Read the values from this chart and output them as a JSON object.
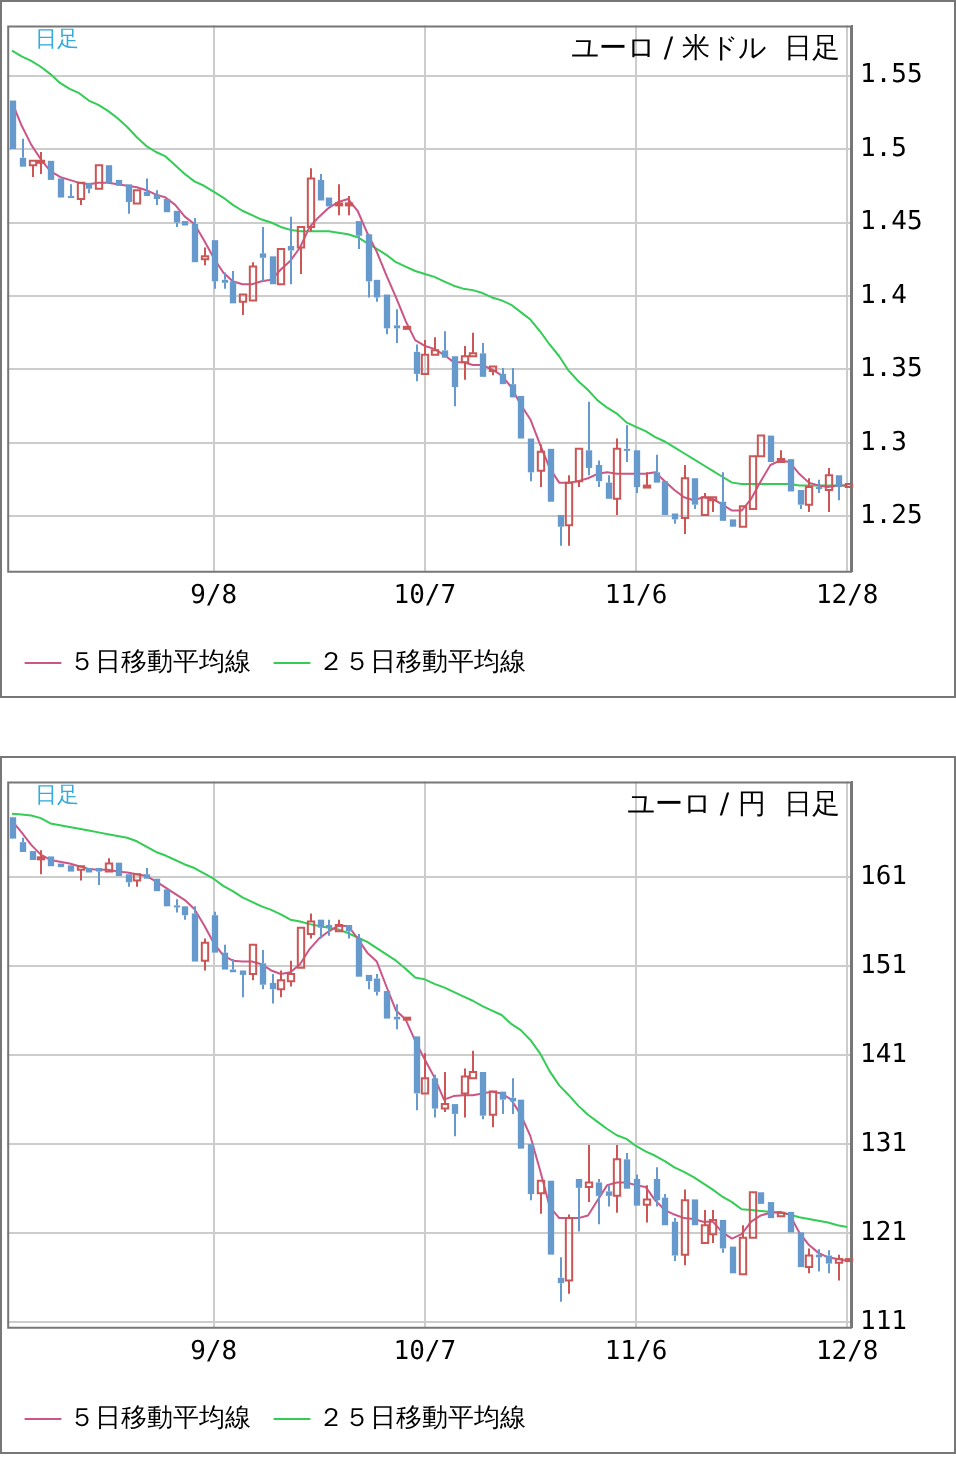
{
  "chart_data": [
    {
      "type": "candlestick",
      "title": "ユーロ / 米ドル  日足",
      "annotations": [
        "日足"
      ],
      "categories": [
        null,
        null,
        null,
        null,
        null,
        null,
        null,
        null,
        null,
        null,
        null,
        null,
        null,
        null,
        null,
        null,
        null,
        null,
        null,
        null,
        null,
        "9/8",
        null,
        null,
        null,
        null,
        null,
        null,
        null,
        null,
        null,
        null,
        null,
        null,
        null,
        null,
        null,
        null,
        null,
        null,
        null,
        null,
        null,
        "10/7",
        null,
        null,
        null,
        null,
        null,
        null,
        null,
        null,
        null,
        null,
        null,
        null,
        null,
        null,
        null,
        null,
        null,
        null,
        null,
        null,
        null,
        "11/6",
        null,
        null,
        null,
        null,
        null,
        null,
        null,
        null,
        null,
        null,
        null,
        null,
        null,
        null,
        null,
        null,
        null,
        null,
        null,
        null,
        null,
        "12/8"
      ],
      "ohlc": [
        [
          1.533,
          1.535,
          1.498,
          1.5
        ],
        [
          1.494,
          1.507,
          1.487,
          1.488
        ],
        [
          1.489,
          1.494,
          1.481,
          1.492
        ],
        [
          1.491,
          1.498,
          1.483,
          1.492
        ],
        [
          1.492,
          1.494,
          1.478,
          1.479
        ],
        [
          1.48,
          1.48,
          1.465,
          1.467
        ],
        [
          1.468,
          1.476,
          1.466,
          1.467
        ],
        [
          1.466,
          1.479,
          1.462,
          1.477
        ],
        [
          1.477,
          1.479,
          1.47,
          1.473
        ],
        [
          1.473,
          1.49,
          1.472,
          1.489
        ],
        [
          1.489,
          1.49,
          1.475,
          1.477
        ],
        [
          1.479,
          1.48,
          1.474,
          1.475
        ],
        [
          1.476,
          1.476,
          1.456,
          1.464
        ],
        [
          1.463,
          1.473,
          1.462,
          1.472
        ],
        [
          1.471,
          1.48,
          1.466,
          1.468
        ],
        [
          1.469,
          1.472,
          1.462,
          1.466
        ],
        [
          1.466,
          1.468,
          1.456,
          1.457
        ],
        [
          1.458,
          1.46,
          1.447,
          1.45
        ],
        [
          1.451,
          1.452,
          1.446,
          1.448
        ],
        [
          1.449,
          1.453,
          1.422,
          1.423
        ],
        [
          1.425,
          1.433,
          1.421,
          1.427
        ],
        [
          1.438,
          1.439,
          1.405,
          1.41
        ],
        [
          1.411,
          1.416,
          1.405,
          1.409
        ],
        [
          1.41,
          1.417,
          1.394,
          1.395
        ],
        [
          1.396,
          1.403,
          1.387,
          1.401
        ],
        [
          1.397,
          1.423,
          1.396,
          1.42
        ],
        [
          1.429,
          1.447,
          1.41,
          1.426
        ],
        [
          1.427,
          1.428,
          1.407,
          1.408
        ],
        [
          1.408,
          1.433,
          1.408,
          1.432
        ],
        [
          1.434,
          1.454,
          1.408,
          1.431
        ],
        [
          1.433,
          1.449,
          1.415,
          1.447
        ],
        [
          1.447,
          1.487,
          1.444,
          1.48
        ],
        [
          1.479,
          1.483,
          1.464,
          1.465
        ],
        [
          1.467,
          1.468,
          1.46,
          1.461
        ],
        [
          1.462,
          1.476,
          1.455,
          1.463
        ],
        [
          1.462,
          1.468,
          1.455,
          1.463
        ],
        [
          1.451,
          1.453,
          1.432,
          1.441
        ],
        [
          1.442,
          1.443,
          1.399,
          1.41
        ],
        [
          1.411,
          1.413,
          1.396,
          1.399
        ],
        [
          1.401,
          1.401,
          1.374,
          1.378
        ],
        [
          1.38,
          1.391,
          1.368,
          1.378
        ],
        [
          1.378,
          1.38,
          1.377,
          1.379
        ],
        [
          1.362,
          1.367,
          1.342,
          1.347
        ],
        [
          1.347,
          1.37,
          1.346,
          1.36
        ],
        [
          1.36,
          1.372,
          1.358,
          1.363
        ],
        [
          1.363,
          1.376,
          1.358,
          1.358
        ],
        [
          1.359,
          1.36,
          1.325,
          1.338
        ],
        [
          1.355,
          1.366,
          1.343,
          1.359
        ],
        [
          1.359,
          1.375,
          1.358,
          1.361
        ],
        [
          1.361,
          1.368,
          1.343,
          1.345
        ],
        [
          1.349,
          1.353,
          1.346,
          1.352
        ],
        [
          1.347,
          1.351,
          1.339,
          1.34
        ],
        [
          1.34,
          1.351,
          1.33,
          1.331
        ],
        [
          1.332,
          1.333,
          1.303,
          1.303
        ],
        [
          1.303,
          1.304,
          1.274,
          1.28
        ],
        [
          1.281,
          1.299,
          1.27,
          1.294
        ],
        [
          1.296,
          1.297,
          1.258,
          1.26
        ],
        [
          1.251,
          1.252,
          1.23,
          1.243
        ],
        [
          1.244,
          1.278,
          1.23,
          1.273
        ],
        [
          1.274,
          1.298,
          1.27,
          1.296
        ],
        [
          1.295,
          1.328,
          1.278,
          1.283
        ],
        [
          1.285,
          1.288,
          1.27,
          1.274
        ],
        [
          1.273,
          1.278,
          1.26,
          1.262
        ],
        [
          1.262,
          1.303,
          1.251,
          1.296
        ],
        [
          1.296,
          1.312,
          1.287,
          1.295
        ],
        [
          1.295,
          1.297,
          1.266,
          1.27
        ],
        [
          1.27,
          1.28,
          1.268,
          1.271
        ],
        [
          1.28,
          1.292,
          1.272,
          1.273
        ],
        [
          1.274,
          1.276,
          1.25,
          1.251
        ],
        [
          1.252,
          1.254,
          1.245,
          1.248
        ],
        [
          1.249,
          1.285,
          1.238,
          1.276
        ],
        [
          1.276,
          1.278,
          1.255,
          1.258
        ],
        [
          1.251,
          1.266,
          1.25,
          1.263
        ],
        [
          1.261,
          1.264,
          1.253,
          1.263
        ],
        [
          1.26,
          1.28,
          1.245,
          1.247
        ],
        [
          1.248,
          1.25,
          1.242,
          1.243
        ],
        [
          1.243,
          1.258,
          1.241,
          1.257
        ],
        [
          1.255,
          1.293,
          1.253,
          1.291
        ],
        [
          1.291,
          1.307,
          1.29,
          1.305
        ],
        [
          1.305,
          1.307,
          1.286,
          1.287
        ],
        [
          1.287,
          1.295,
          1.285,
          1.289
        ],
        [
          1.289,
          1.29,
          1.266,
          1.267
        ],
        [
          1.268,
          1.27,
          1.255,
          1.258
        ],
        [
          1.258,
          1.276,
          1.253,
          1.27
        ],
        [
          1.27,
          1.275,
          1.266,
          1.269
        ],
        [
          1.268,
          1.283,
          1.253,
          1.278
        ],
        [
          1.278,
          1.278,
          1.261,
          1.27
        ],
        [
          1.27,
          1.273,
          1.269,
          1.272
        ]
      ],
      "colors": [
        "#6699cc",
        "#6699cc",
        "#cc5555",
        "#cc5555",
        "#6699cc",
        "#6699cc",
        "#6699cc",
        "#cc5555",
        "#6699cc",
        "#cc5555",
        "#6699cc",
        "#6699cc",
        "#6699cc",
        "#cc5555",
        "#6699cc",
        "#6699cc",
        "#6699cc",
        "#6699cc",
        "#6699cc",
        "#6699cc",
        "#cc5555",
        "#6699cc",
        "#6699cc",
        "#6699cc",
        "#cc5555",
        "#cc5555",
        "#6699cc",
        "#6699cc",
        "#cc5555",
        "#6699cc",
        "#cc5555",
        "#cc5555",
        "#6699cc",
        "#6699cc",
        "#cc5555",
        "#cc5555",
        "#6699cc",
        "#6699cc",
        "#6699cc",
        "#6699cc",
        "#6699cc",
        "#cc5555",
        "#6699cc",
        "#cc5555",
        "#cc5555",
        "#6699cc",
        "#6699cc",
        "#cc5555",
        "#cc5555",
        "#6699cc",
        "#cc5555",
        "#6699cc",
        "#6699cc",
        "#6699cc",
        "#6699cc",
        "#cc5555",
        "#6699cc",
        "#6699cc",
        "#cc5555",
        "#cc5555",
        "#6699cc",
        "#6699cc",
        "#6699cc",
        "#cc5555",
        "#6699cc",
        "#6699cc",
        "#cc5555",
        "#6699cc",
        "#6699cc",
        "#6699cc",
        "#cc5555",
        "#6699cc",
        "#cc5555",
        "#cc5555",
        "#6699cc",
        "#6699cc",
        "#cc5555",
        "#cc5555",
        "#cc5555",
        "#6699cc",
        "#cc5555",
        "#6699cc",
        "#6699cc",
        "#cc5555",
        "#6699cc",
        "#cc5555",
        "#6699cc",
        "#cc5555"
      ],
      "series": [
        {
          "type": "line",
          "name": "５日移動平均線",
          "color": "#cc5588",
          "values": [
            1.532,
            1.516,
            1.503,
            1.493,
            1.485,
            1.481,
            1.479,
            1.477,
            1.476,
            1.477,
            1.477,
            1.476,
            1.475,
            1.474,
            1.472,
            1.469,
            1.467,
            1.462,
            1.454,
            1.449,
            1.438,
            1.426,
            1.416,
            1.41,
            1.408,
            1.408,
            1.41,
            1.411,
            1.418,
            1.424,
            1.433,
            1.447,
            1.454,
            1.46,
            1.464,
            1.466,
            1.458,
            1.443,
            1.43,
            1.414,
            1.399,
            1.383,
            1.37,
            1.366,
            1.364,
            1.36,
            1.355,
            1.355,
            1.353,
            1.353,
            1.35,
            1.346,
            1.338,
            1.326,
            1.316,
            1.299,
            1.283,
            1.273,
            1.273,
            1.274,
            1.276,
            1.279,
            1.28,
            1.279,
            1.279,
            1.279,
            1.279,
            1.28,
            1.274,
            1.268,
            1.263,
            1.261,
            1.263,
            1.262,
            1.258,
            1.254,
            1.254,
            1.262,
            1.274,
            1.285,
            1.288,
            1.287,
            1.279,
            1.273,
            1.271,
            1.27,
            1.271,
            1.271
          ]
        },
        {
          "type": "line",
          "name": "２５日移動平均線",
          "color": "#33cc55",
          "values": [
            1.567,
            1.563,
            1.56,
            1.556,
            1.551,
            1.545,
            1.541,
            1.538,
            1.533,
            1.53,
            1.526,
            1.521,
            1.515,
            1.508,
            1.502,
            1.498,
            1.495,
            1.489,
            1.483,
            1.478,
            1.475,
            1.471,
            1.467,
            1.462,
            1.458,
            1.455,
            1.452,
            1.45,
            1.447,
            1.445,
            1.444,
            1.444,
            1.444,
            1.444,
            1.443,
            1.442,
            1.44,
            1.436,
            1.432,
            1.428,
            1.423,
            1.42,
            1.417,
            1.415,
            1.413,
            1.41,
            1.407,
            1.405,
            1.404,
            1.402,
            1.399,
            1.397,
            1.394,
            1.389,
            1.384,
            1.376,
            1.367,
            1.359,
            1.349,
            1.342,
            1.336,
            1.329,
            1.324,
            1.32,
            1.314,
            1.311,
            1.308,
            1.304,
            1.301,
            1.297,
            1.293,
            1.289,
            1.285,
            1.281,
            1.277,
            1.273,
            1.272,
            1.272,
            1.272,
            1.272,
            1.272,
            1.272,
            1.271,
            1.271,
            1.271,
            1.271,
            1.271,
            1.271
          ]
        }
      ],
      "ylim": [
        1.213,
        1.584
      ],
      "yticks": [
        1.25,
        1.3,
        1.35,
        1.4,
        1.45,
        1.5,
        1.55
      ],
      "grid": true,
      "legend": "bottom",
      "marker": "none"
    },
    {
      "type": "candlestick",
      "title": "ユーロ / 円  日足",
      "annotations": [
        "日足"
      ],
      "categories": [
        null,
        null,
        null,
        null,
        null,
        null,
        null,
        null,
        null,
        null,
        null,
        null,
        null,
        null,
        null,
        null,
        null,
        null,
        null,
        null,
        null,
        "9/8",
        null,
        null,
        null,
        null,
        null,
        null,
        null,
        null,
        null,
        null,
        null,
        null,
        null,
        null,
        null,
        null,
        null,
        null,
        null,
        null,
        null,
        "10/7",
        null,
        null,
        null,
        null,
        null,
        null,
        null,
        null,
        null,
        null,
        null,
        null,
        null,
        null,
        null,
        null,
        null,
        null,
        null,
        null,
        null,
        "11/6",
        null,
        null,
        null,
        null,
        null,
        null,
        null,
        null,
        null,
        null,
        null,
        null,
        null,
        null,
        null,
        null,
        null,
        null,
        null,
        null,
        null,
        "12/8"
      ],
      "ohlc": [
        [
          167.7,
          168.0,
          165.2,
          165.3
        ],
        [
          164.9,
          165.4,
          163.5,
          163.8
        ],
        [
          163.9,
          164.2,
          162.7,
          162.9
        ],
        [
          163.1,
          164.0,
          161.3,
          163.2
        ],
        [
          163.3,
          163.5,
          162.0,
          162.2
        ],
        [
          162.5,
          162.7,
          161.8,
          162.1
        ],
        [
          162.3,
          162.5,
          161.5,
          161.6
        ],
        [
          161.8,
          162.4,
          160.6,
          162.2
        ],
        [
          162.0,
          162.2,
          161.3,
          161.5
        ],
        [
          162.0,
          162.2,
          160.1,
          161.6
        ],
        [
          161.6,
          163.1,
          161.3,
          162.5
        ],
        [
          162.6,
          162.6,
          161.0,
          161.1
        ],
        [
          161.3,
          161.5,
          159.9,
          160.4
        ],
        [
          160.6,
          161.5,
          159.9,
          161.3
        ],
        [
          161.3,
          162.0,
          160.6,
          160.8
        ],
        [
          160.8,
          161.0,
          159.1,
          159.4
        ],
        [
          159.6,
          159.8,
          157.6,
          157.7
        ],
        [
          157.8,
          158.5,
          157.0,
          157.6
        ],
        [
          157.7,
          158.0,
          156.2,
          156.7
        ],
        [
          156.9,
          157.7,
          151.2,
          151.5
        ],
        [
          151.6,
          154.1,
          150.5,
          153.6
        ],
        [
          156.7,
          157.1,
          152.2,
          152.5
        ],
        [
          152.5,
          153.4,
          150.5,
          150.6
        ],
        [
          150.6,
          151.8,
          150.0,
          150.3
        ],
        [
          150.5,
          150.8,
          147.5,
          150.0
        ],
        [
          150.1,
          153.7,
          149.4,
          153.4
        ],
        [
          151.3,
          152.8,
          148.4,
          148.9
        ],
        [
          149.1,
          150.1,
          146.8,
          148.4
        ],
        [
          148.4,
          150.5,
          147.5,
          149.4
        ],
        [
          149.3,
          151.6,
          148.7,
          150.1
        ],
        [
          150.8,
          155.6,
          150.5,
          155.3
        ],
        [
          154.6,
          156.9,
          154.1,
          156.0
        ],
        [
          156.2,
          156.3,
          154.1,
          155.3
        ],
        [
          155.6,
          156.2,
          154.4,
          155.3
        ],
        [
          154.9,
          156.2,
          154.6,
          155.6
        ],
        [
          155.6,
          155.8,
          154.1,
          154.9
        ],
        [
          154.1,
          154.6,
          149.8,
          149.8
        ],
        [
          150.0,
          150.3,
          148.4,
          149.3
        ],
        [
          149.6,
          150.1,
          147.7,
          148.1
        ],
        [
          148.2,
          148.4,
          144.8,
          145.1
        ],
        [
          145.3,
          146.7,
          143.9,
          145.0
        ],
        [
          145.1,
          145.3,
          144.9,
          145.2
        ],
        [
          143.1,
          143.2,
          134.8,
          136.7
        ],
        [
          136.7,
          141.2,
          136.4,
          138.4
        ],
        [
          138.4,
          138.8,
          134.0,
          135.0
        ],
        [
          135.0,
          139.1,
          134.6,
          135.5
        ],
        [
          135.5,
          135.7,
          131.9,
          134.4
        ],
        [
          136.7,
          139.5,
          134.0,
          138.6
        ],
        [
          138.4,
          141.5,
          138.3,
          139.1
        ],
        [
          139.1,
          139.3,
          133.8,
          134.2
        ],
        [
          134.3,
          137.0,
          132.9,
          136.9
        ],
        [
          136.9,
          137.2,
          134.4,
          136.0
        ],
        [
          136.2,
          138.4,
          134.4,
          135.8
        ],
        [
          136.0,
          136.2,
          130.5,
          130.5
        ],
        [
          131.0,
          131.0,
          124.7,
          125.4
        ],
        [
          125.5,
          127.1,
          123.2,
          126.9
        ],
        [
          126.9,
          127.1,
          118.6,
          118.6
        ],
        [
          116.0,
          118.3,
          113.3,
          115.4
        ],
        [
          115.7,
          123.1,
          114.2,
          122.7
        ],
        [
          127.1,
          127.4,
          121.2,
          126.1
        ],
        [
          126.2,
          130.9,
          124.5,
          126.7
        ],
        [
          126.7,
          127.1,
          122.0,
          125.2
        ],
        [
          125.7,
          126.4,
          124.0,
          125.2
        ],
        [
          125.2,
          130.9,
          123.3,
          129.3
        ],
        [
          129.3,
          130.0,
          125.9,
          126.0
        ],
        [
          127.1,
          127.6,
          124.0,
          124.1
        ],
        [
          124.2,
          126.4,
          122.2,
          124.8
        ],
        [
          127.1,
          128.4,
          124.0,
          124.7
        ],
        [
          125.0,
          125.4,
          121.8,
          121.9
        ],
        [
          122.3,
          122.7,
          117.9,
          118.5
        ],
        [
          118.6,
          125.9,
          117.4,
          124.7
        ],
        [
          124.8,
          124.8,
          121.8,
          121.9
        ],
        [
          119.9,
          123.6,
          119.8,
          121.9
        ],
        [
          120.9,
          123.6,
          119.9,
          122.5
        ],
        [
          122.5,
          122.7,
          118.8,
          119.3
        ],
        [
          119.5,
          119.7,
          116.3,
          116.5
        ],
        [
          116.4,
          121.9,
          116.3,
          120.5
        ],
        [
          120.5,
          125.9,
          120.4,
          125.6
        ],
        [
          125.6,
          125.9,
          124.2,
          124.3
        ],
        [
          124.5,
          124.8,
          122.6,
          122.7
        ],
        [
          122.9,
          123.6,
          122.6,
          123.3
        ],
        [
          123.4,
          123.6,
          120.9,
          121.1
        ],
        [
          121.1,
          121.4,
          117.1,
          117.2
        ],
        [
          117.2,
          119.3,
          116.5,
          118.5
        ],
        [
          118.6,
          119.2,
          116.7,
          118.3
        ],
        [
          118.5,
          119.1,
          116.5,
          117.6
        ],
        [
          117.7,
          118.6,
          115.7,
          118.1
        ],
        [
          117.9,
          118.3,
          117.8,
          118.1
        ]
      ],
      "colors": [
        "#6699cc",
        "#6699cc",
        "#6699cc",
        "#cc5555",
        "#6699cc",
        "#6699cc",
        "#6699cc",
        "#cc5555",
        "#6699cc",
        "#6699cc",
        "#cc5555",
        "#6699cc",
        "#6699cc",
        "#cc5555",
        "#6699cc",
        "#6699cc",
        "#6699cc",
        "#6699cc",
        "#6699cc",
        "#6699cc",
        "#cc5555",
        "#6699cc",
        "#6699cc",
        "#6699cc",
        "#6699cc",
        "#cc5555",
        "#6699cc",
        "#6699cc",
        "#cc5555",
        "#cc5555",
        "#cc5555",
        "#cc5555",
        "#6699cc",
        "#6699cc",
        "#cc5555",
        "#6699cc",
        "#6699cc",
        "#6699cc",
        "#6699cc",
        "#6699cc",
        "#6699cc",
        "#cc5555",
        "#6699cc",
        "#cc5555",
        "#6699cc",
        "#cc5555",
        "#6699cc",
        "#cc5555",
        "#cc5555",
        "#6699cc",
        "#cc5555",
        "#6699cc",
        "#6699cc",
        "#6699cc",
        "#6699cc",
        "#cc5555",
        "#6699cc",
        "#6699cc",
        "#cc5555",
        "#6699cc",
        "#cc5555",
        "#6699cc",
        "#6699cc",
        "#cc5555",
        "#6699cc",
        "#6699cc",
        "#cc5555",
        "#6699cc",
        "#6699cc",
        "#6699cc",
        "#cc5555",
        "#6699cc",
        "#cc5555",
        "#cc5555",
        "#6699cc",
        "#6699cc",
        "#cc5555",
        "#cc5555",
        "#6699cc",
        "#6699cc",
        "#cc5555",
        "#6699cc",
        "#6699cc",
        "#cc5555",
        "#6699cc",
        "#6699cc",
        "#cc5555",
        "#cc5555"
      ],
      "series": [
        {
          "type": "line",
          "name": "５日移動平均線",
          "color": "#cc5588",
          "values": [
            167.3,
            166.0,
            164.6,
            163.5,
            162.9,
            162.7,
            162.5,
            162.2,
            161.9,
            161.8,
            161.8,
            161.6,
            161.5,
            161.3,
            161.1,
            160.5,
            159.8,
            159.1,
            158.4,
            157.4,
            155.6,
            153.6,
            152.2,
            151.6,
            151.5,
            151.5,
            151.2,
            150.5,
            150.1,
            150.3,
            151.2,
            152.9,
            154.1,
            154.9,
            155.5,
            155.5,
            154.1,
            152.5,
            151.5,
            148.7,
            146.0,
            145.0,
            142.6,
            140.5,
            138.5,
            136.0,
            136.4,
            136.5,
            136.5,
            136.7,
            136.9,
            136.7,
            136.0,
            134.3,
            131.9,
            128.1,
            124.0,
            122.7,
            122.7,
            122.7,
            123.0,
            124.7,
            126.4,
            126.7,
            126.7,
            126.4,
            126.2,
            124.7,
            123.6,
            123.1,
            122.7,
            122.6,
            122.3,
            122.3,
            121.1,
            120.4,
            120.9,
            122.3,
            123.0,
            123.3,
            123.4,
            123.1,
            121.1,
            119.7,
            118.8,
            118.3,
            118.1,
            117.9
          ]
        },
        {
          "type": "line",
          "name": "２５日移動平均線",
          "color": "#33cc55",
          "values": [
            168.1,
            168.0,
            167.9,
            167.6,
            167.0,
            166.8,
            166.6,
            166.4,
            166.2,
            166.0,
            165.8,
            165.6,
            165.4,
            165.0,
            164.4,
            163.8,
            163.4,
            162.9,
            162.4,
            162.0,
            161.4,
            160.8,
            160.0,
            159.4,
            158.7,
            158.2,
            157.7,
            157.3,
            156.8,
            156.2,
            156.0,
            155.7,
            155.5,
            155.3,
            155.1,
            154.7,
            154.2,
            153.7,
            153.0,
            152.3,
            151.6,
            150.7,
            149.7,
            149.5,
            149.0,
            148.6,
            148.1,
            147.6,
            147.1,
            146.5,
            146.0,
            145.5,
            144.5,
            143.8,
            142.7,
            141.2,
            139.2,
            137.6,
            136.5,
            135.3,
            134.3,
            133.5,
            132.7,
            132.0,
            131.6,
            130.8,
            130.2,
            129.7,
            129.1,
            128.4,
            127.9,
            127.3,
            126.6,
            125.9,
            125.1,
            124.5,
            123.7,
            123.6,
            123.5,
            123.4,
            123.3,
            123.1,
            122.8,
            122.6,
            122.4,
            122.2,
            121.9,
            121.7
          ]
        }
      ],
      "ylim": [
        110.5,
        171.7
      ],
      "yticks": [
        111,
        121,
        131,
        141,
        151,
        161
      ],
      "grid": true,
      "legend": "bottom",
      "marker": "none"
    }
  ]
}
